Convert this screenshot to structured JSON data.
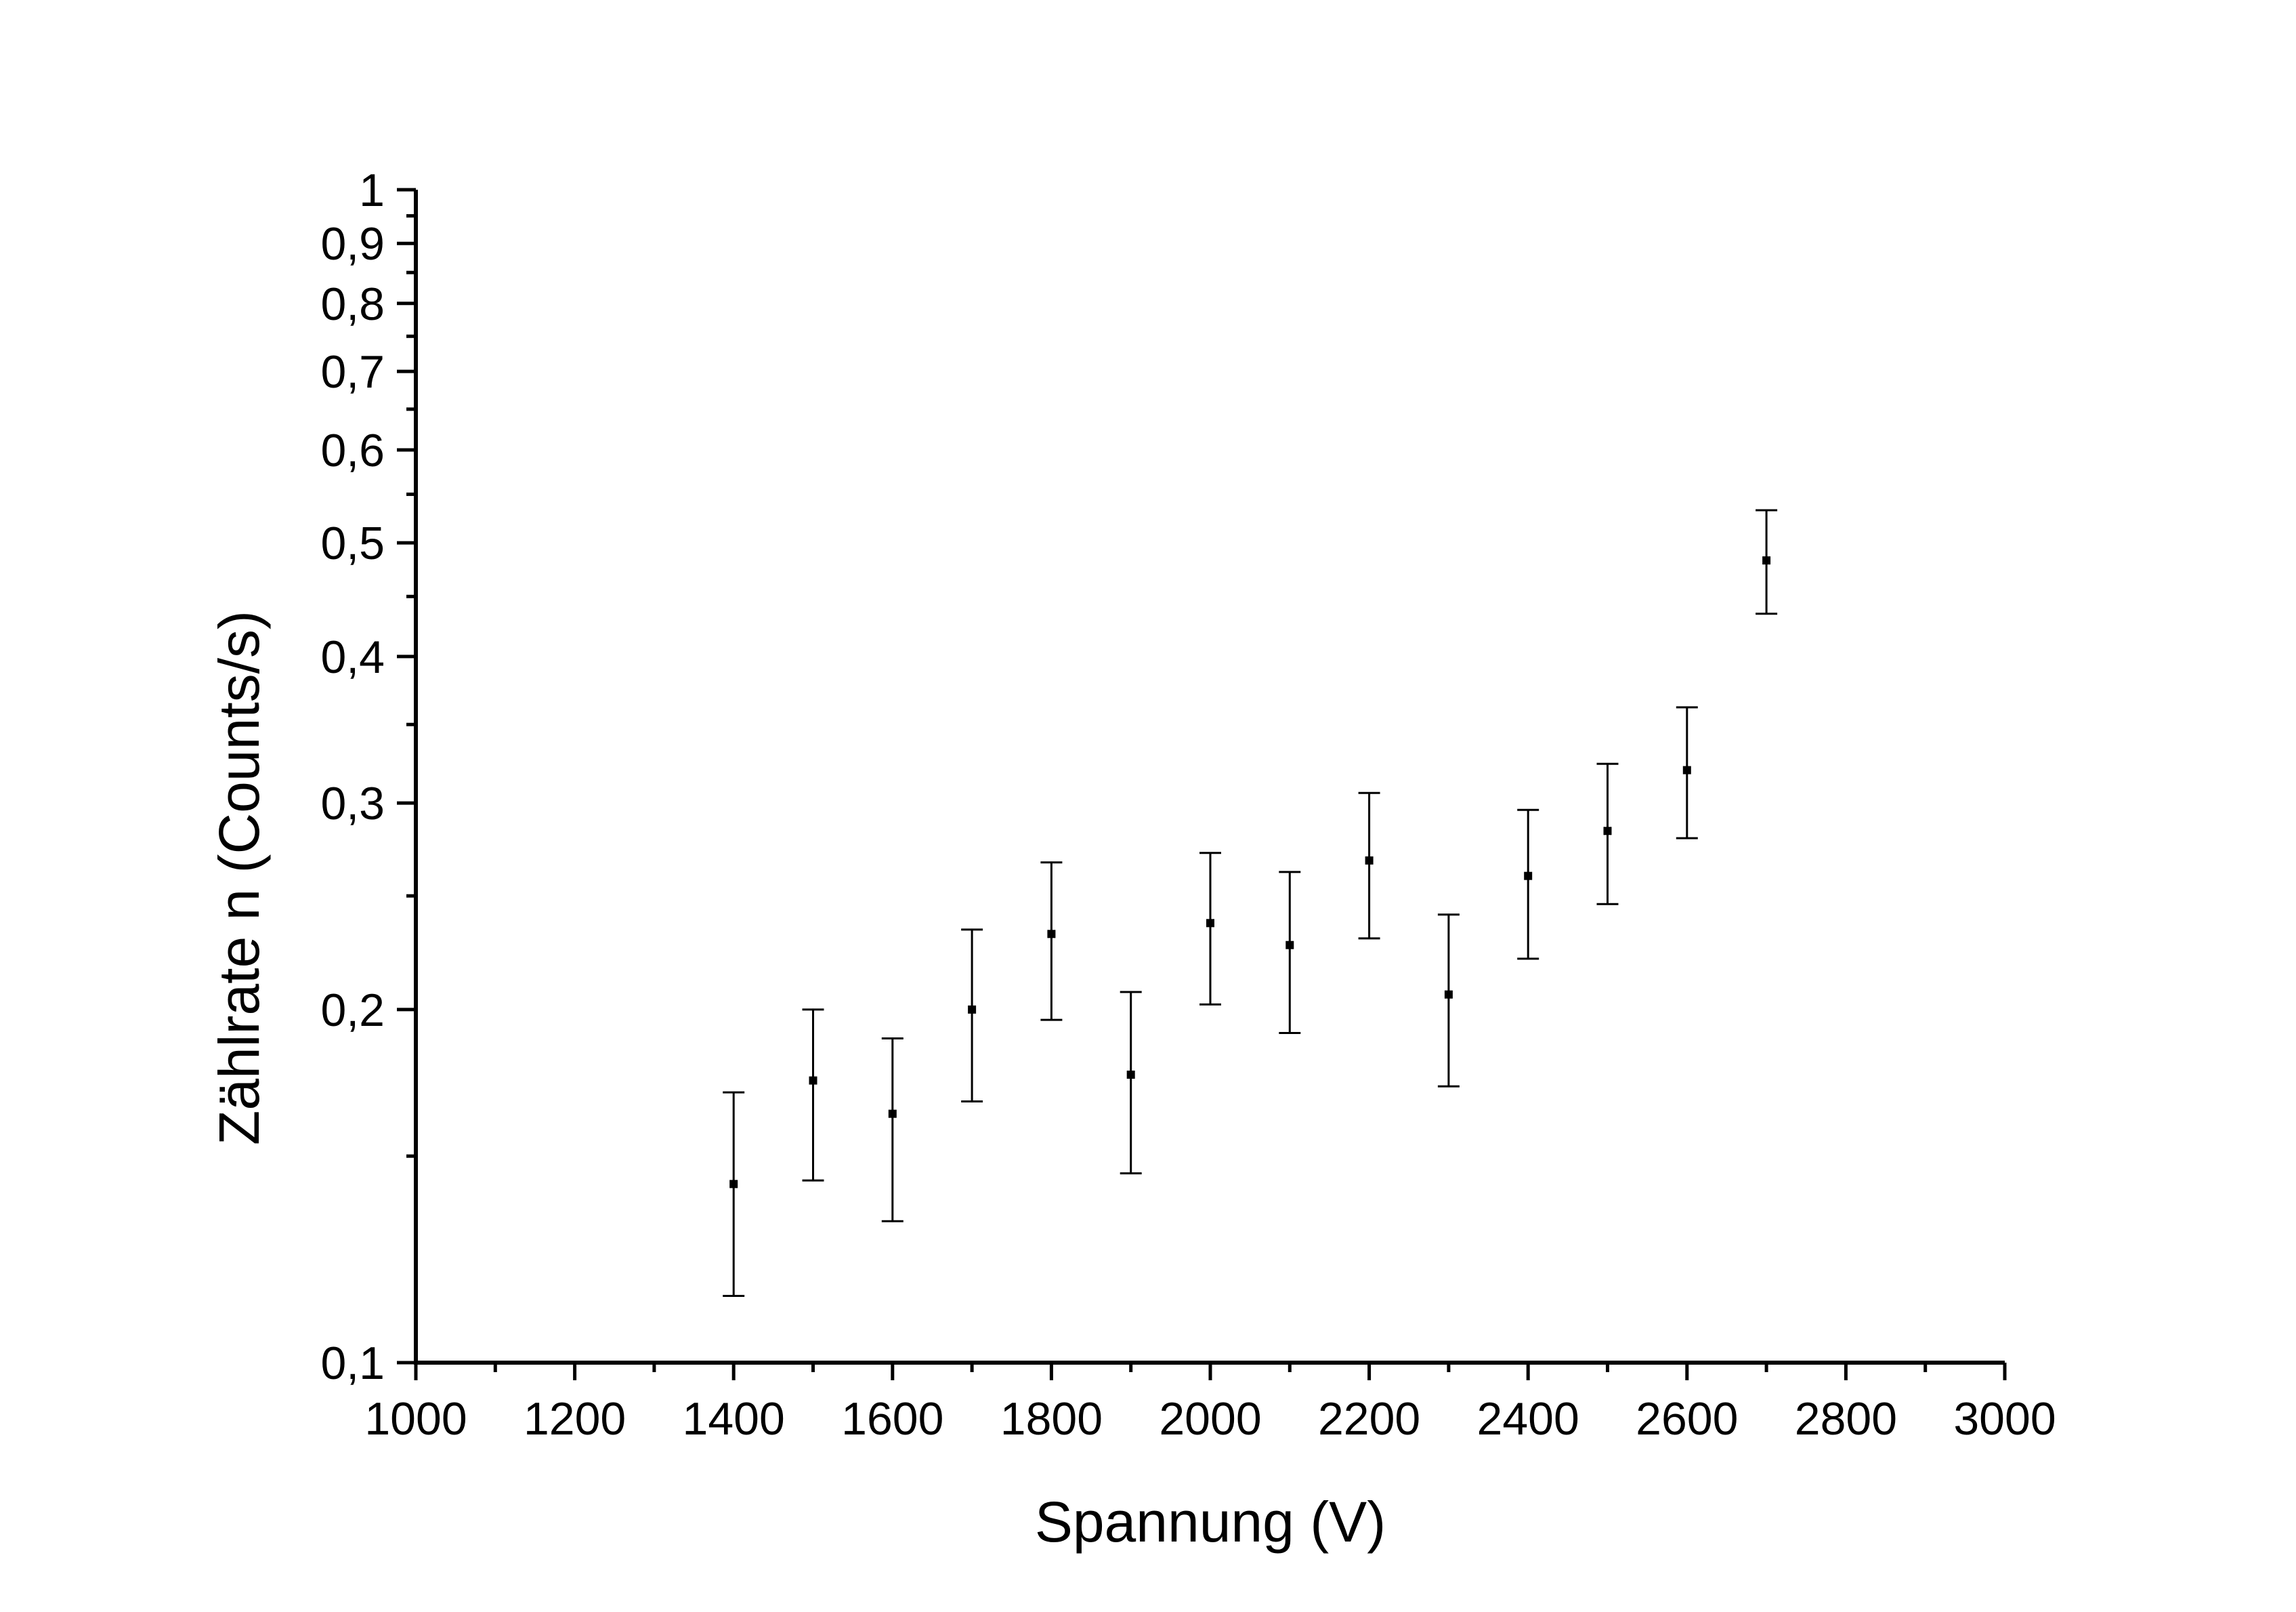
{
  "chart_data": {
    "type": "scatter",
    "title": "",
    "xlabel": "Spannung (V)",
    "ylabel": "Zählrate n (Counts/s)",
    "xlim": [
      1000,
      3000
    ],
    "ylim": [
      0.1,
      1
    ],
    "yscale": "log",
    "grid": false,
    "legend": "none",
    "x_ticks": [
      "1000",
      "1200",
      "1400",
      "1600",
      "1800",
      "2000",
      "2200",
      "2400",
      "2600",
      "2800",
      "3000"
    ],
    "y_ticks": [
      {
        "value": 0.1,
        "label": "0,1"
      },
      {
        "value": 0.2,
        "label": "0,2"
      },
      {
        "value": 0.3,
        "label": "0,3"
      },
      {
        "value": 0.4,
        "label": "0,4"
      },
      {
        "value": 0.5,
        "label": "0,5"
      },
      {
        "value": 0.6,
        "label": "0,6"
      },
      {
        "value": 0.7,
        "label": "0,7"
      },
      {
        "value": 0.8,
        "label": "0,8"
      },
      {
        "value": 0.9,
        "label": "0,9"
      },
      {
        "value": 1.0,
        "label": "1"
      }
    ],
    "series": [
      {
        "points": [
          {
            "x": 1400,
            "y": 0.142,
            "ylow": 0.114,
            "yhigh": 0.17
          },
          {
            "x": 1500,
            "y": 0.174,
            "ylow": 0.143,
            "yhigh": 0.2
          },
          {
            "x": 1600,
            "y": 0.163,
            "ylow": 0.132,
            "yhigh": 0.189
          },
          {
            "x": 1700,
            "y": 0.2,
            "ylow": 0.167,
            "yhigh": 0.234
          },
          {
            "x": 1800,
            "y": 0.232,
            "ylow": 0.196,
            "yhigh": 0.267
          },
          {
            "x": 1900,
            "y": 0.176,
            "ylow": 0.145,
            "yhigh": 0.207
          },
          {
            "x": 2000,
            "y": 0.237,
            "ylow": 0.202,
            "yhigh": 0.272
          },
          {
            "x": 2100,
            "y": 0.227,
            "ylow": 0.191,
            "yhigh": 0.262
          },
          {
            "x": 2200,
            "y": 0.268,
            "ylow": 0.23,
            "yhigh": 0.306
          },
          {
            "x": 2300,
            "y": 0.206,
            "ylow": 0.172,
            "yhigh": 0.241
          },
          {
            "x": 2400,
            "y": 0.26,
            "ylow": 0.221,
            "yhigh": 0.296
          },
          {
            "x": 2500,
            "y": 0.284,
            "ylow": 0.246,
            "yhigh": 0.324
          },
          {
            "x": 2600,
            "y": 0.32,
            "ylow": 0.28,
            "yhigh": 0.362
          },
          {
            "x": 2700,
            "y": 0.483,
            "ylow": 0.435,
            "yhigh": 0.533
          }
        ]
      }
    ]
  }
}
